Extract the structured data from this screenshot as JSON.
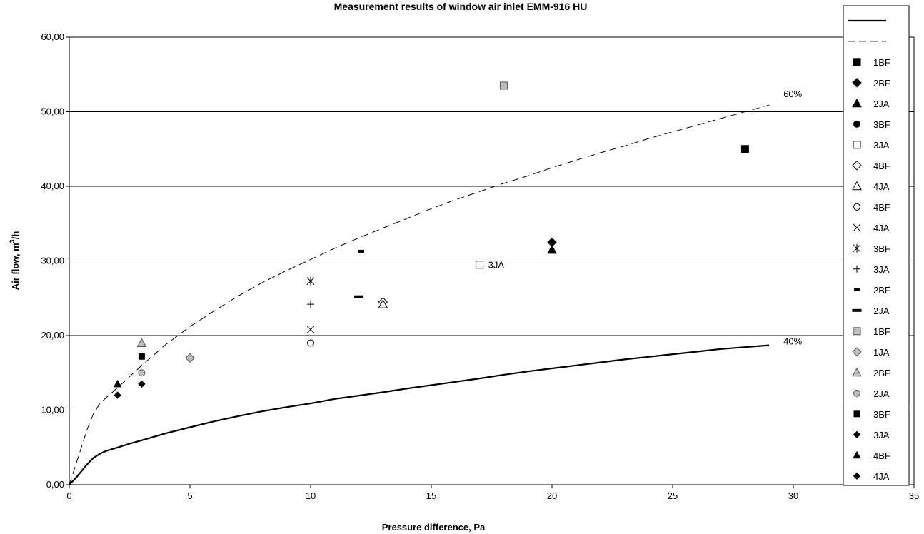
{
  "chart_data": {
    "type": "scatter",
    "title": "Measurement results of window air inlet EMM-916 HU",
    "xlabel": "Pressure difference, Pa",
    "ylabel_main": "Air flow, m",
    "ylabel_sup": "3",
    "ylabel_tail": "/h",
    "xlim": [
      0,
      35
    ],
    "ylim": [
      0,
      60
    ],
    "x_ticks": [
      "0",
      "5",
      "10",
      "15",
      "20",
      "25",
      "30",
      "35"
    ],
    "y_ticks": [
      "0,00",
      "10,00",
      "20,00",
      "30,00",
      "40,00",
      "50,00",
      "60,00"
    ],
    "grid": "horizontal",
    "legend_position": "right",
    "lines": [
      {
        "name": "",
        "style": "solid",
        "color": "#000000",
        "label": "40%",
        "points": [
          [
            0,
            0
          ],
          [
            0.3,
            1
          ],
          [
            0.5,
            1.8
          ],
          [
            0.7,
            2.6
          ],
          [
            1,
            3.6
          ],
          [
            1.3,
            4.2
          ],
          [
            1.5,
            4.5
          ],
          [
            2,
            5
          ],
          [
            2.5,
            5.5
          ],
          [
            3,
            5.95
          ],
          [
            4,
            6.9
          ],
          [
            5,
            7.7
          ],
          [
            6,
            8.5
          ],
          [
            7,
            9.2
          ],
          [
            8,
            9.85
          ],
          [
            9,
            10.4
          ],
          [
            10,
            10.9
          ],
          [
            11,
            11.5
          ],
          [
            12,
            11.95
          ],
          [
            13,
            12.4
          ],
          [
            14,
            12.9
          ],
          [
            15,
            13.35
          ],
          [
            16,
            13.8
          ],
          [
            17,
            14.25
          ],
          [
            18,
            14.75
          ],
          [
            19,
            15.2
          ],
          [
            20,
            15.6
          ],
          [
            21,
            16
          ],
          [
            22,
            16.4
          ],
          [
            23,
            16.8
          ],
          [
            24,
            17.15
          ],
          [
            25,
            17.5
          ],
          [
            26,
            17.85
          ],
          [
            27,
            18.2
          ],
          [
            28,
            18.45
          ],
          [
            29,
            18.7
          ]
        ]
      },
      {
        "name": "",
        "style": "dashed",
        "color": "#000000",
        "label": "60%",
        "points": [
          [
            0,
            0
          ],
          [
            0.25,
            2.5
          ],
          [
            0.5,
            5
          ],
          [
            0.75,
            7.5
          ],
          [
            1,
            9.5
          ],
          [
            1.25,
            10.8
          ],
          [
            1.5,
            11.6
          ],
          [
            2,
            13
          ],
          [
            3,
            16
          ],
          [
            4,
            18.8
          ],
          [
            5,
            21.2
          ],
          [
            6,
            23.3
          ],
          [
            7,
            25.3
          ],
          [
            8,
            27.1
          ],
          [
            9,
            28.7
          ],
          [
            10,
            30.2
          ],
          [
            11,
            31.7
          ],
          [
            12,
            33.1
          ],
          [
            13,
            34.4
          ],
          [
            14,
            35.7
          ],
          [
            15,
            37
          ],
          [
            16,
            38.2
          ],
          [
            17,
            39.3
          ],
          [
            18,
            40.4
          ],
          [
            19,
            41.4
          ],
          [
            20,
            42.5
          ],
          [
            21,
            43.5
          ],
          [
            22,
            44.5
          ],
          [
            23,
            45.4
          ],
          [
            24,
            46.4
          ],
          [
            25,
            47.3
          ],
          [
            26,
            48.2
          ],
          [
            27,
            49.1
          ],
          [
            28,
            50
          ],
          [
            29,
            50.9
          ]
        ]
      }
    ],
    "series": [
      {
        "name": "1BF",
        "marker": "square",
        "fill": "#000000",
        "stroke": "#000000",
        "points": [
          [
            28,
            45
          ]
        ]
      },
      {
        "name": "2BF",
        "marker": "diamond",
        "fill": "#000000",
        "stroke": "#000000",
        "points": [
          [
            20,
            32.5
          ]
        ]
      },
      {
        "name": "2JA",
        "marker": "triangle",
        "fill": "#000000",
        "stroke": "#000000",
        "points": [
          [
            20,
            31.5
          ]
        ]
      },
      {
        "name": "3BF",
        "marker": "circle",
        "fill": "#000000",
        "stroke": "#000000",
        "points": []
      },
      {
        "name": "3JA",
        "marker": "square",
        "fill": "#ffffff",
        "stroke": "#000000",
        "points": [
          [
            17,
            29.5
          ]
        ],
        "label": "3JA"
      },
      {
        "name": "4BF",
        "marker": "diamond",
        "fill": "#ffffff",
        "stroke": "#000000",
        "points": [
          [
            13,
            24.5
          ]
        ]
      },
      {
        "name": "4JA",
        "marker": "triangle",
        "fill": "#ffffff",
        "stroke": "#000000",
        "points": [
          [
            13,
            24.2
          ]
        ]
      },
      {
        "name": "4BF",
        "marker": "circle",
        "fill": "#ffffff",
        "stroke": "#000000",
        "points": [
          [
            10,
            19
          ]
        ]
      },
      {
        "name": "4JA",
        "marker": "x",
        "fill": "none",
        "stroke": "#000000",
        "points": [
          [
            10,
            20.8
          ]
        ]
      },
      {
        "name": "3BF",
        "marker": "star",
        "fill": "none",
        "stroke": "#000000",
        "points": [
          [
            10,
            27.3
          ]
        ]
      },
      {
        "name": "3JA",
        "marker": "plus",
        "fill": "none",
        "stroke": "#000000",
        "points": [
          [
            10,
            24.2
          ]
        ]
      },
      {
        "name": "2BF",
        "marker": "short-dash",
        "fill": "#000000",
        "stroke": "#000000",
        "points": [
          [
            12.1,
            31.3
          ]
        ]
      },
      {
        "name": "2JA",
        "marker": "long-dash",
        "fill": "#000000",
        "stroke": "#000000",
        "points": [
          [
            12,
            25.2
          ]
        ]
      },
      {
        "name": "1BF",
        "marker": "square",
        "fill": "#bdbdbd",
        "stroke": "#555555",
        "points": [
          [
            18,
            53.5
          ]
        ]
      },
      {
        "name": "1JA",
        "marker": "diamond",
        "fill": "#bdbdbd",
        "stroke": "#555555",
        "points": [
          [
            5,
            17
          ]
        ]
      },
      {
        "name": "2BF",
        "marker": "triangle",
        "fill": "#bdbdbd",
        "stroke": "#555555",
        "points": [
          [
            3,
            19
          ]
        ]
      },
      {
        "name": "2JA",
        "marker": "circle",
        "fill": "#bdbdbd",
        "stroke": "#555555",
        "points": [
          [
            3,
            15
          ]
        ]
      },
      {
        "name": "3BF",
        "marker": "square-small",
        "fill": "#000000",
        "stroke": "#000000",
        "points": [
          [
            3,
            17.2
          ]
        ]
      },
      {
        "name": "3JA",
        "marker": "diamond-small",
        "fill": "#000000",
        "stroke": "#000000",
        "points": [
          [
            3,
            13.5
          ]
        ]
      },
      {
        "name": "4BF",
        "marker": "triangle-small",
        "fill": "#000000",
        "stroke": "#000000",
        "points": [
          [
            2,
            13.5
          ]
        ]
      },
      {
        "name": "4JA",
        "marker": "diamond-small",
        "fill": "#000000",
        "stroke": "#000000",
        "points": [
          [
            2,
            12
          ]
        ]
      }
    ]
  }
}
